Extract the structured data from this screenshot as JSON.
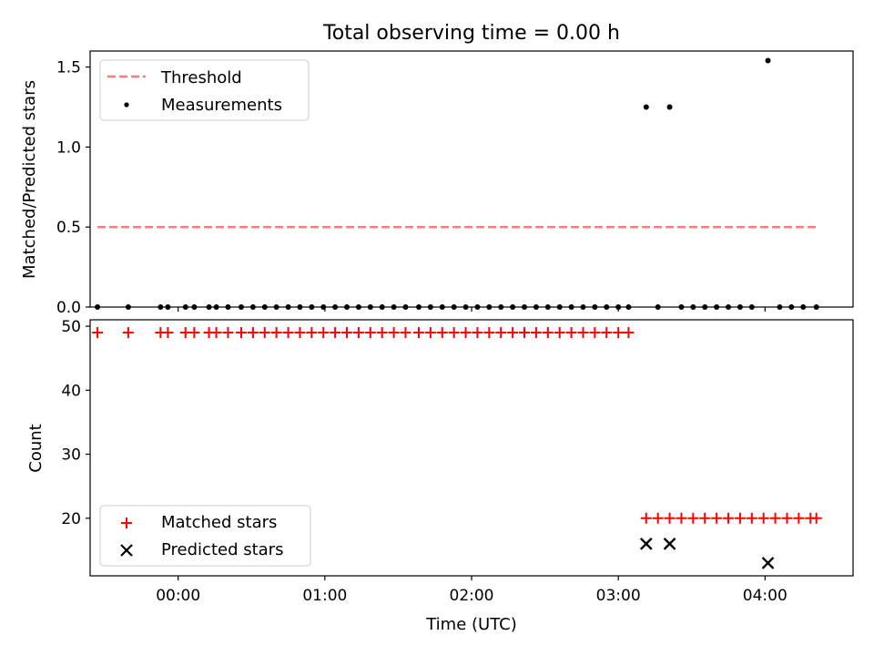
{
  "figure": {
    "title": "Total observing time = 0.00 h"
  },
  "colors": {
    "threshold": "#f08080",
    "measurement": "#000000",
    "matched": "#ff0000",
    "predicted": "#000000"
  },
  "chart_data": [
    {
      "type": "scatter",
      "ylabel": "Matched/Predicted stars",
      "xlim": [
        -0.6,
        4.6
      ],
      "ylim": [
        0,
        1.6
      ],
      "yticks": [
        0.0,
        0.5,
        1.0,
        1.5
      ],
      "ytick_labels": [
        "0.0",
        "0.5",
        "1.0",
        "1.5"
      ],
      "xticks": [
        0,
        1,
        2,
        3,
        4
      ],
      "legend": {
        "placement": "upper-left",
        "entries": [
          "Threshold",
          "Measurements"
        ]
      },
      "threshold": {
        "name": "Threshold",
        "y": 0.5,
        "x": [
          -0.55,
          4.35
        ]
      },
      "series": [
        {
          "name": "Measurements",
          "x": [
            -0.55,
            -0.34,
            -0.12,
            -0.07,
            0.05,
            0.11,
            0.21,
            0.26,
            0.34,
            0.43,
            0.51,
            0.59,
            0.67,
            0.75,
            0.83,
            0.91,
            0.99,
            1.07,
            1.15,
            1.23,
            1.31,
            1.39,
            1.47,
            1.55,
            1.64,
            1.72,
            1.8,
            1.88,
            1.96,
            2.04,
            2.12,
            2.2,
            2.28,
            2.36,
            2.44,
            2.52,
            2.6,
            2.68,
            2.76,
            2.84,
            2.92,
            3.0,
            3.07,
            3.19,
            3.27,
            3.35,
            3.43,
            3.51,
            3.59,
            3.67,
            3.75,
            3.83,
            3.91,
            4.02,
            4.1,
            4.18,
            4.26,
            4.35
          ],
          "y": [
            0,
            0,
            0,
            0,
            0,
            0,
            0,
            0,
            0,
            0,
            0,
            0,
            0,
            0,
            0,
            0,
            0,
            0,
            0,
            0,
            0,
            0,
            0,
            0,
            0,
            0,
            0,
            0,
            0,
            0,
            0,
            0,
            0,
            0,
            0,
            0,
            0,
            0,
            0,
            0,
            0,
            0,
            0,
            1.25,
            0,
            1.25,
            0,
            0,
            0,
            0,
            0,
            0,
            0,
            1.54,
            0,
            0,
            0,
            0
          ]
        }
      ]
    },
    {
      "type": "scatter",
      "ylabel": "Count",
      "xlabel": "Time (UTC)",
      "xlim": [
        -0.6,
        4.6
      ],
      "ylim": [
        11,
        51
      ],
      "yticks": [
        20,
        30,
        40,
        50
      ],
      "ytick_labels": [
        "20",
        "30",
        "40",
        "50"
      ],
      "xticks": [
        0,
        1,
        2,
        3,
        4
      ],
      "xtick_labels": [
        "00:00",
        "01:00",
        "02:00",
        "03:00",
        "04:00"
      ],
      "legend": {
        "placement": "lower-left",
        "entries": [
          "Matched stars",
          "Predicted stars"
        ]
      },
      "series": [
        {
          "name": "Matched stars",
          "marker": "plus",
          "x": [
            -0.55,
            -0.34,
            -0.12,
            -0.07,
            0.05,
            0.11,
            0.21,
            0.26,
            0.34,
            0.43,
            0.51,
            0.59,
            0.67,
            0.75,
            0.83,
            0.91,
            0.99,
            1.07,
            1.15,
            1.23,
            1.31,
            1.39,
            1.47,
            1.55,
            1.64,
            1.72,
            1.8,
            1.88,
            1.96,
            2.04,
            2.12,
            2.2,
            2.28,
            2.36,
            2.44,
            2.52,
            2.6,
            2.68,
            2.76,
            2.84,
            2.92,
            3.0,
            3.07,
            3.19,
            3.27,
            3.35,
            3.43,
            3.51,
            3.59,
            3.67,
            3.75,
            3.83,
            3.91,
            3.99,
            4.07,
            4.15,
            4.23,
            4.31,
            4.35
          ],
          "y": [
            49,
            49,
            49,
            49,
            49,
            49,
            49,
            49,
            49,
            49,
            49,
            49,
            49,
            49,
            49,
            49,
            49,
            49,
            49,
            49,
            49,
            49,
            49,
            49,
            49,
            49,
            49,
            49,
            49,
            49,
            49,
            49,
            49,
            49,
            49,
            49,
            49,
            49,
            49,
            49,
            49,
            49,
            49,
            20,
            20,
            20,
            20,
            20,
            20,
            20,
            20,
            20,
            20,
            20,
            20,
            20,
            20,
            20,
            20
          ]
        },
        {
          "name": "Predicted stars",
          "marker": "x",
          "x": [
            3.19,
            3.35,
            4.02
          ],
          "y": [
            16,
            16,
            13
          ]
        }
      ]
    }
  ]
}
